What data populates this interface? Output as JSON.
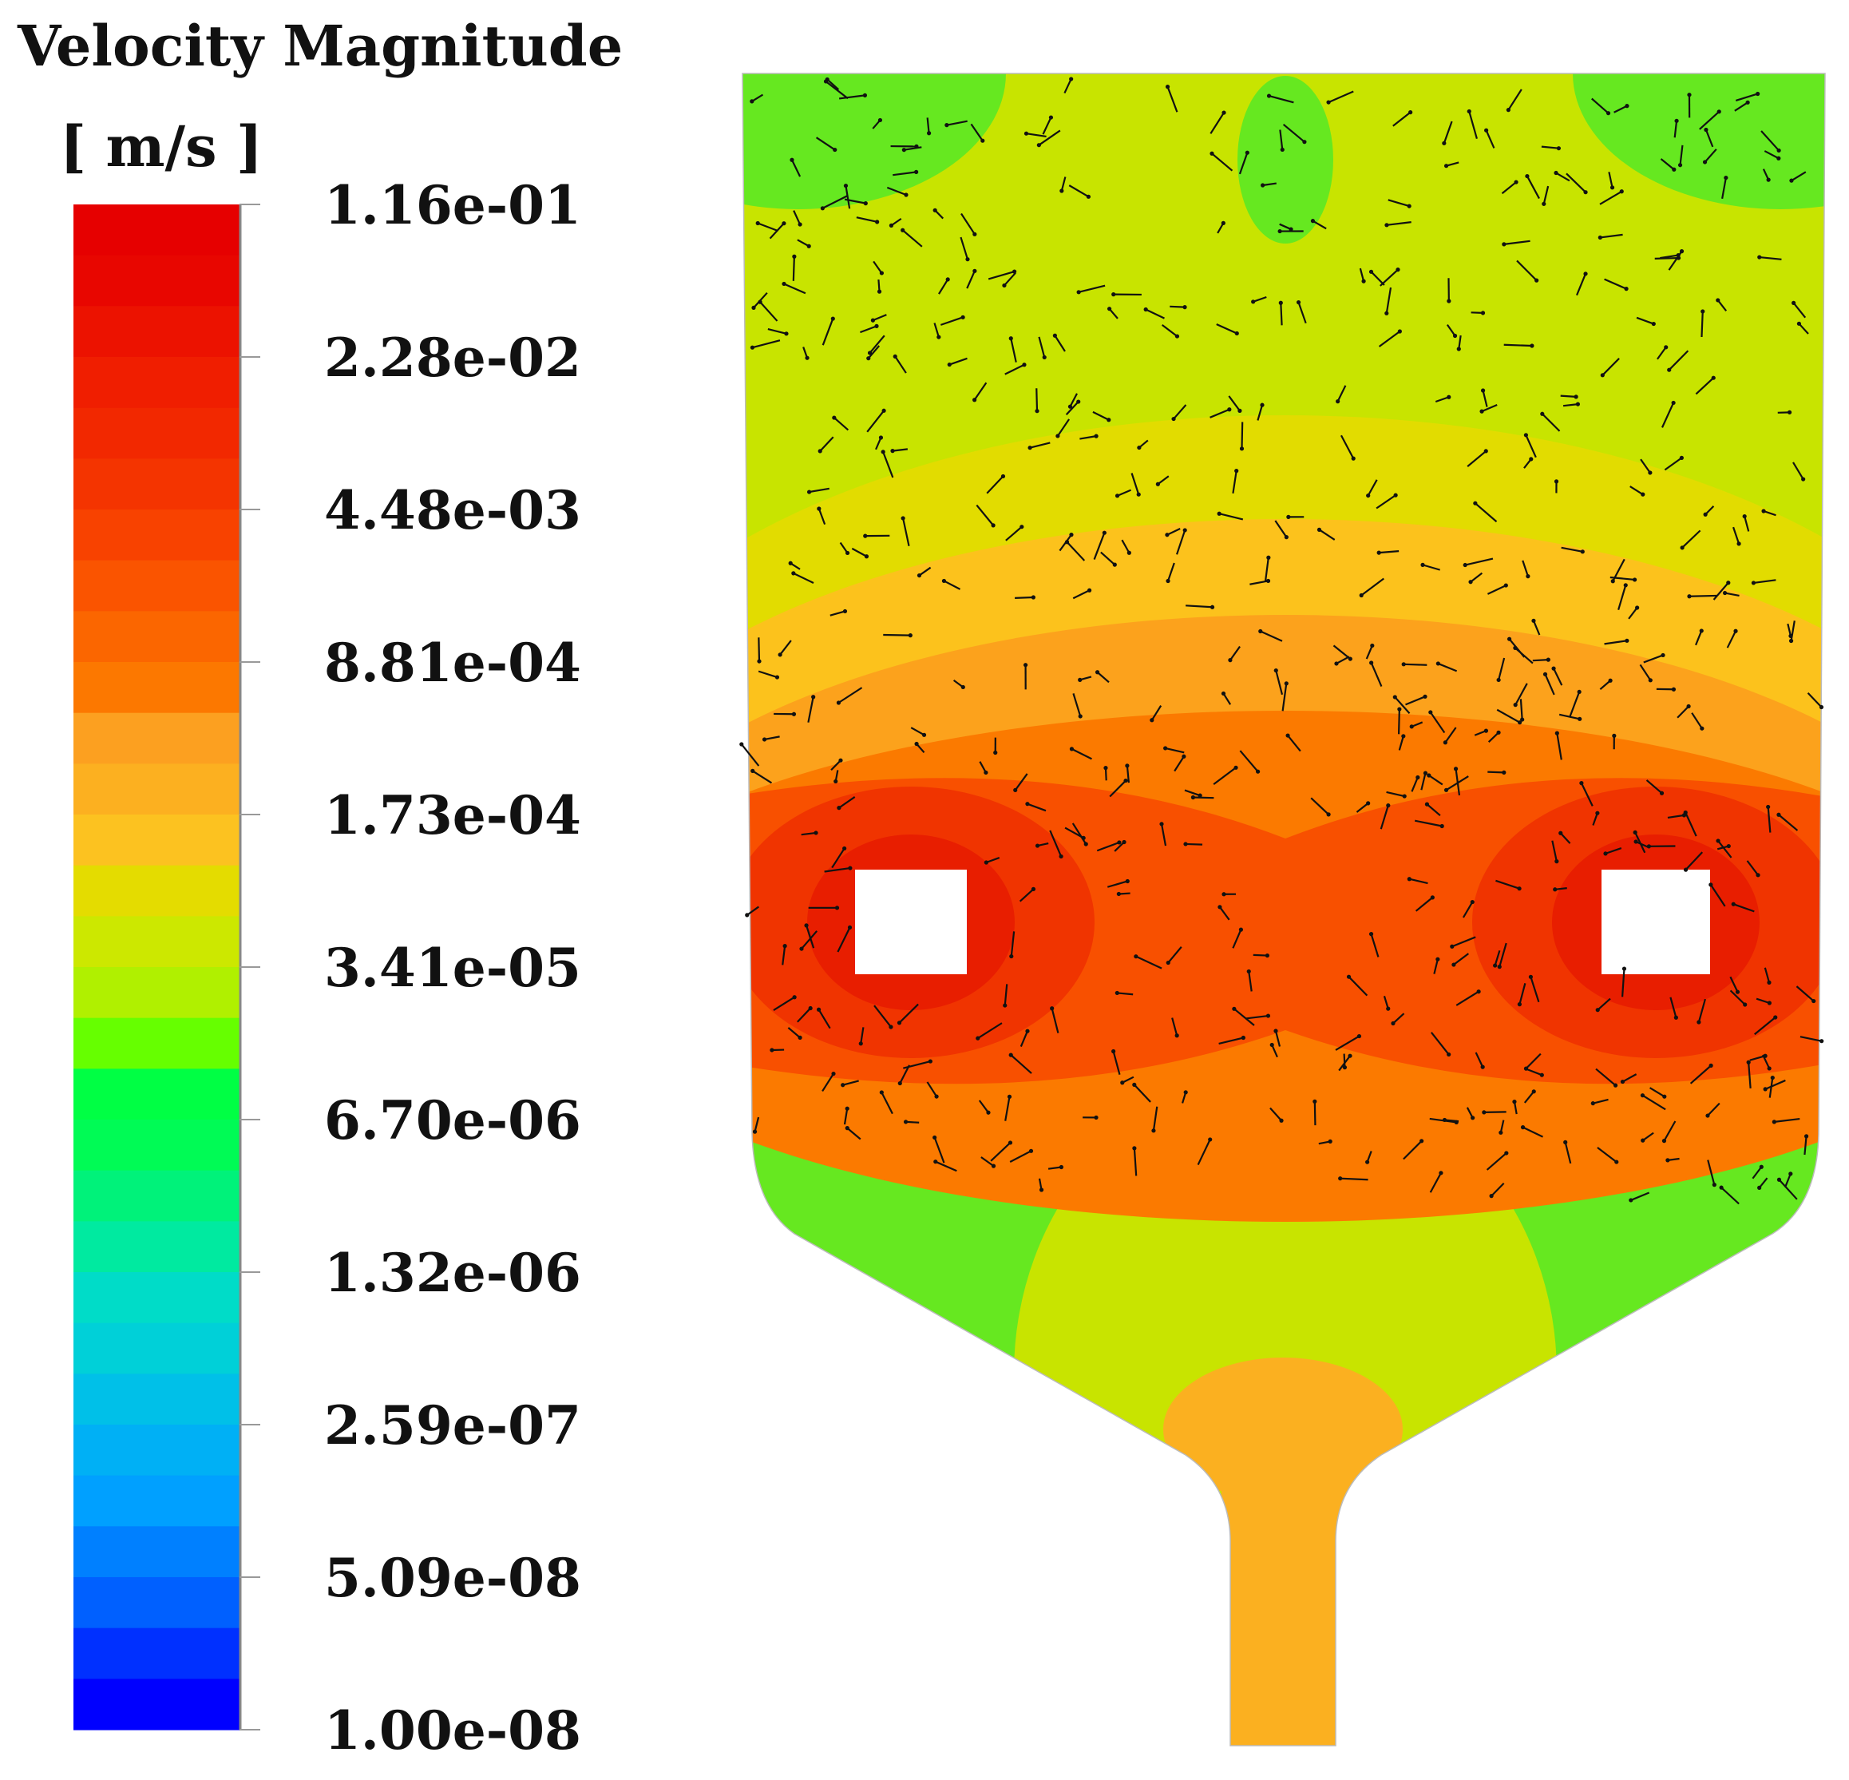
{
  "legend": {
    "title": "Velocity Magnitude",
    "unit": "[ m/s ]",
    "tick_labels": [
      "1.16e-01",
      "2.28e-02",
      "4.48e-03",
      "8.81e-04",
      "1.73e-04",
      "3.41e-05",
      "6.70e-06",
      "1.32e-06",
      "2.59e-07",
      "5.09e-08",
      "1.00e-08"
    ],
    "scale": "logarithmic",
    "range": [
      1e-08,
      0.116
    ],
    "band_colors": [
      "#e60000",
      "#e80600",
      "#ec1200",
      "#f01e00",
      "#f22800",
      "#f43400",
      "#f84200",
      "#fa5400",
      "#fb6600",
      "#fc7800",
      "#fca020",
      "#fcb020",
      "#fcc220",
      "#e4dc00",
      "#cce800",
      "#b0f000",
      "#66ff00",
      "#00ff44",
      "#00fb55",
      "#00f27a",
      "#00eaa0",
      "#00dcc8",
      "#00d0d8",
      "#00c0e8",
      "#00b0f5",
      "#00a0ff",
      "#0080ff",
      "#0060ff",
      "#0030ff",
      "#0000ff"
    ]
  },
  "figure": {
    "colors": {
      "base": "#c8e400",
      "green": "#66e820",
      "yellow": "#e2dc00",
      "light_orange": "#fcc21c",
      "orange": "#fca21c",
      "dark_orange": "#fb7a00",
      "red_orange": "#f85000",
      "red": "#f03400",
      "core_red": "#e81e00",
      "neck": "#fbb020",
      "vector": "#111111"
    }
  }
}
